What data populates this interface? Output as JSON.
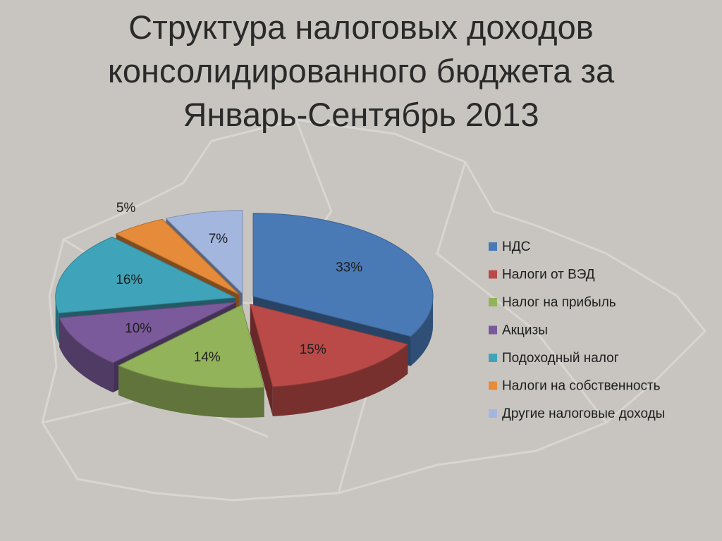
{
  "chart_data": {
    "type": "pie",
    "title": "Структура налоговых доходов консолидированного бюджета за Январь-Сентябрь 2013",
    "categories": [
      "НДС",
      "Налоги от ВЭД",
      "Налог на прибыль",
      "Акцизы",
      "Подоходный налог",
      "Налоги на собственность",
      "Другие налоговые доходы"
    ],
    "values": [
      33,
      15,
      14,
      10,
      16,
      5,
      7
    ],
    "value_labels": [
      "33%",
      "15%",
      "14%",
      "10%",
      "16%",
      "5%",
      "7%"
    ],
    "colors": [
      "#4a7ab5",
      "#b94a48",
      "#93b35a",
      "#7a5a9a",
      "#3fa3b9",
      "#e58b3a",
      "#a3b6de"
    ],
    "legend": "right"
  }
}
